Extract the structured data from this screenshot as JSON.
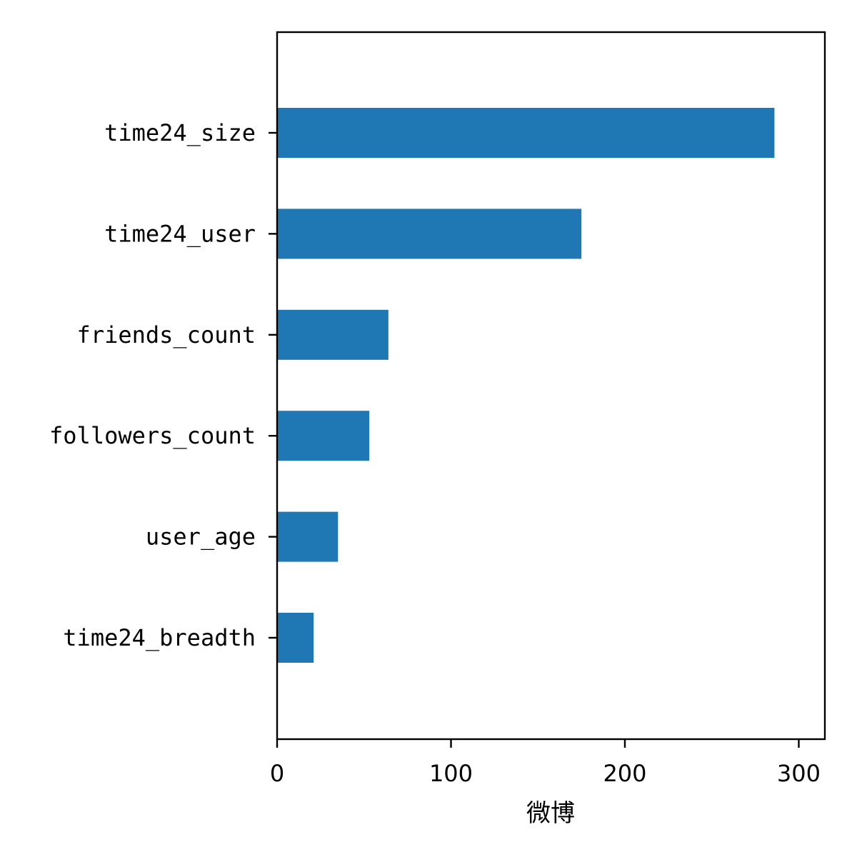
{
  "chart_data": {
    "type": "bar",
    "orientation": "horizontal",
    "categories": [
      "time24_size",
      "time24_user",
      "friends_count",
      "followers_count",
      "user_age",
      "time24_breadth"
    ],
    "values": [
      286,
      175,
      64,
      53,
      35,
      21
    ],
    "xlabel": "微博",
    "ylabel": "",
    "title": "",
    "xlim": [
      0,
      315
    ],
    "xticks": [
      0,
      100,
      200,
      300
    ],
    "bar_color": "#1f77b4",
    "grid": false,
    "legend": false
  }
}
